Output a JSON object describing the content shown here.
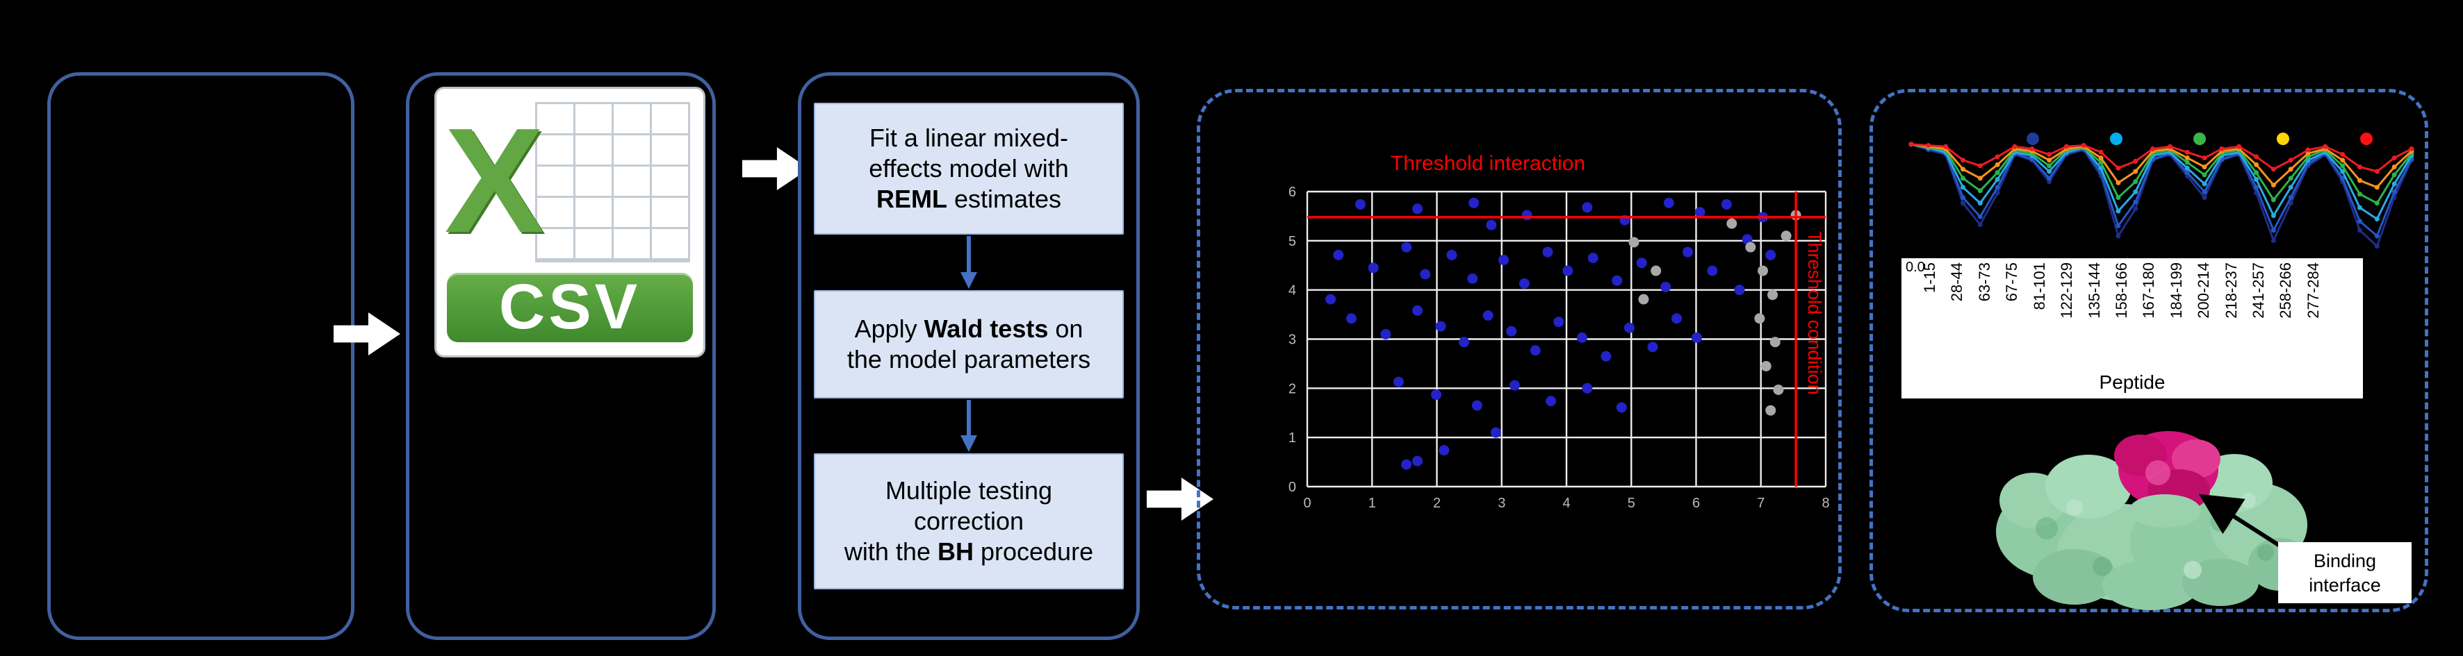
{
  "canvas": {
    "bg": "#000000",
    "box_border_color": "#41609F",
    "dashed_border_color": "#4472C4"
  },
  "csv": {
    "label": "CSV",
    "x_letter": "X"
  },
  "steps": [
    {
      "lines": [
        [
          {
            "t": "Fit a linear mixed-",
            "b": false
          }
        ],
        [
          {
            "t": "effects model with",
            "b": false
          }
        ],
        [
          {
            "t": "REML",
            "b": true
          },
          {
            "t": " estimates",
            "b": false
          }
        ]
      ]
    },
    {
      "lines": [
        [
          {
            "t": "Apply ",
            "b": false
          },
          {
            "t": "Wald tests",
            "b": true
          },
          {
            "t": " on",
            "b": false
          }
        ],
        [
          {
            "t": "the model parameters",
            "b": false
          }
        ]
      ]
    },
    {
      "lines": [
        [
          {
            "t": "Multiple testing",
            "b": false
          }
        ],
        [
          {
            "t": "correction",
            "b": false
          }
        ],
        [
          {
            "t": "with the ",
            "b": false
          },
          {
            "t": "BH",
            "b": true
          },
          {
            "t": " procedure",
            "b": false
          }
        ]
      ]
    }
  ],
  "chart_data": [
    {
      "type": "scatter",
      "title": "Threshold interaction",
      "right_label": "Threshold condition",
      "x_range": [
        0,
        8
      ],
      "y_range": [
        0,
        6
      ],
      "x_gridlines": 9,
      "y_gridlines": 7,
      "grid": true,
      "grid_color": "#EDEDED",
      "threshold_color": "#FF0000",
      "threshold_interaction_y": 5.48,
      "threshold_condition_x": 7.54,
      "x_ticks": [
        "0",
        "1",
        "2",
        "3",
        "4",
        "5",
        "6",
        "7",
        "8"
      ],
      "y_ticks": [
        "0",
        "1",
        "2",
        "3",
        "4",
        "5",
        "6"
      ],
      "series": [
        {
          "name": "blue-points",
          "color": "#2323C8",
          "points": [
            [
              0.82,
              5.74
            ],
            [
              1.7,
              5.65
            ],
            [
              2.57,
              5.77
            ],
            [
              2.84,
              5.32
            ],
            [
              3.39,
              5.52
            ],
            [
              4.32,
              5.68
            ],
            [
              4.9,
              5.42
            ],
            [
              5.58,
              5.77
            ],
            [
              6.06,
              5.58
            ],
            [
              6.47,
              5.74
            ],
            [
              7.03,
              5.48
            ],
            [
              0.48,
              4.71
            ],
            [
              1.02,
              4.45
            ],
            [
              1.53,
              4.87
            ],
            [
              1.82,
              4.32
            ],
            [
              2.23,
              4.71
            ],
            [
              2.55,
              4.23
            ],
            [
              3.03,
              4.61
            ],
            [
              3.35,
              4.13
            ],
            [
              3.71,
              4.77
            ],
            [
              4.02,
              4.39
            ],
            [
              4.41,
              4.65
            ],
            [
              4.78,
              4.19
            ],
            [
              5.16,
              4.55
            ],
            [
              5.53,
              4.06
            ],
            [
              5.87,
              4.77
            ],
            [
              6.25,
              4.39
            ],
            [
              6.67,
              4.0
            ],
            [
              0.36,
              3.81
            ],
            [
              0.68,
              3.42
            ],
            [
              1.21,
              3.1
            ],
            [
              1.7,
              3.58
            ],
            [
              2.06,
              3.26
            ],
            [
              2.42,
              2.94
            ],
            [
              2.79,
              3.48
            ],
            [
              3.15,
              3.16
            ],
            [
              3.52,
              2.77
            ],
            [
              3.88,
              3.35
            ],
            [
              4.24,
              3.03
            ],
            [
              4.61,
              2.65
            ],
            [
              4.97,
              3.23
            ],
            [
              5.33,
              2.84
            ],
            [
              5.7,
              3.42
            ],
            [
              6.01,
              3.03
            ],
            [
              1.41,
              2.13
            ],
            [
              1.99,
              1.87
            ],
            [
              2.62,
              1.65
            ],
            [
              3.2,
              2.06
            ],
            [
              3.76,
              1.74
            ],
            [
              4.32,
              2.0
            ],
            [
              4.85,
              1.61
            ],
            [
              1.53,
              0.45
            ],
            [
              1.7,
              0.52
            ],
            [
              2.11,
              0.74
            ],
            [
              2.91,
              1.1
            ],
            [
              6.79,
              5.03
            ],
            [
              7.15,
              4.71
            ]
          ]
        },
        {
          "name": "gray-points",
          "color": "#A8A8A8",
          "points": [
            [
              6.55,
              5.35
            ],
            [
              6.84,
              4.87
            ],
            [
              7.03,
              4.39
            ],
            [
              7.18,
              3.9
            ],
            [
              6.98,
              3.42
            ],
            [
              7.22,
              2.94
            ],
            [
              7.08,
              2.45
            ],
            [
              7.27,
              1.97
            ],
            [
              7.15,
              1.55
            ],
            [
              7.39,
              5.1
            ],
            [
              5.04,
              4.97
            ],
            [
              5.38,
              4.39
            ],
            [
              5.19,
              3.81
            ],
            [
              7.54,
              5.52
            ]
          ]
        }
      ]
    },
    {
      "type": "line",
      "xlabel": "Peptide",
      "y_tick_label": "0.0",
      "y_range": [
        0,
        1
      ],
      "categories": [
        "1-15",
        "28-44",
        "63-73",
        "67-75",
        "81-101",
        "122-129",
        "135-144",
        "158-166",
        "167-180",
        "184-199",
        "200-214",
        "218-237",
        "241-257",
        "258-266",
        "277-284"
      ],
      "legend_colors": [
        "#1F3B9B",
        "#00AEEF",
        "#3AB54A",
        "#FFD800",
        "#FF1111"
      ],
      "series": [
        {
          "name": "timepoint-deep-blue",
          "color": "#1F2D8A",
          "values": [
            0.97,
            0.92,
            0.88,
            0.45,
            0.26,
            0.54,
            0.88,
            0.83,
            0.64,
            0.88,
            0.92,
            0.69,
            0.16,
            0.4,
            0.83,
            0.88,
            0.69,
            0.5,
            0.83,
            0.88,
            0.54,
            0.12,
            0.45,
            0.78,
            0.88,
            0.64,
            0.21,
            0.07,
            0.5,
            0.83
          ]
        },
        {
          "name": "timepoint-blue",
          "color": "#2457C5",
          "values": [
            0.97,
            0.93,
            0.89,
            0.5,
            0.33,
            0.59,
            0.89,
            0.84,
            0.67,
            0.89,
            0.93,
            0.72,
            0.25,
            0.46,
            0.84,
            0.89,
            0.72,
            0.55,
            0.84,
            0.89,
            0.59,
            0.21,
            0.5,
            0.8,
            0.89,
            0.67,
            0.29,
            0.16,
            0.55,
            0.84
          ]
        },
        {
          "name": "timepoint-cyan",
          "color": "#29ABE2",
          "values": [
            0.97,
            0.94,
            0.9,
            0.59,
            0.45,
            0.66,
            0.9,
            0.87,
            0.73,
            0.9,
            0.94,
            0.76,
            0.38,
            0.55,
            0.87,
            0.9,
            0.76,
            0.62,
            0.87,
            0.9,
            0.66,
            0.34,
            0.59,
            0.83,
            0.9,
            0.73,
            0.41,
            0.31,
            0.62,
            0.87
          ]
        },
        {
          "name": "timepoint-green",
          "color": "#2BB34B",
          "values": [
            0.97,
            0.94,
            0.92,
            0.67,
            0.56,
            0.72,
            0.92,
            0.89,
            0.78,
            0.92,
            0.94,
            0.81,
            0.5,
            0.64,
            0.89,
            0.92,
            0.81,
            0.7,
            0.89,
            0.92,
            0.72,
            0.48,
            0.67,
            0.86,
            0.92,
            0.78,
            0.53,
            0.45,
            0.7,
            0.89
          ]
        },
        {
          "name": "timepoint-orange",
          "color": "#F7941D",
          "values": [
            0.97,
            0.95,
            0.93,
            0.75,
            0.67,
            0.79,
            0.93,
            0.91,
            0.83,
            0.93,
            0.95,
            0.85,
            0.63,
            0.73,
            0.91,
            0.93,
            0.85,
            0.77,
            0.91,
            0.93,
            0.79,
            0.61,
            0.75,
            0.89,
            0.93,
            0.83,
            0.65,
            0.59,
            0.77,
            0.91
          ]
        },
        {
          "name": "timepoint-red",
          "color": "#ED1C24",
          "values": [
            0.97,
            0.96,
            0.95,
            0.83,
            0.78,
            0.86,
            0.95,
            0.93,
            0.88,
            0.95,
            0.96,
            0.9,
            0.76,
            0.82,
            0.93,
            0.95,
            0.9,
            0.85,
            0.93,
            0.95,
            0.86,
            0.75,
            0.83,
            0.92,
            0.95,
            0.88,
            0.77,
            0.73,
            0.85,
            0.93
          ]
        }
      ]
    }
  ],
  "protein": {
    "label_line1": "Binding",
    "label_line2": "interface",
    "surface_color": "#9AD2AE",
    "interface_color": "#D4147C"
  }
}
